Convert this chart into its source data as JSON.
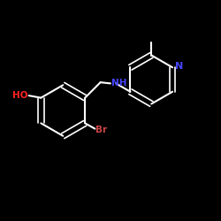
{
  "background_color": "#000000",
  "bond_color": "#ffffff",
  "N_color": "#4444ff",
  "O_color": "#ff2222",
  "Br_color": "#cc4444",
  "atom_labels": {
    "N": "N",
    "NH": "NH",
    "HO": "HO",
    "Br": "Br"
  },
  "figsize": [
    2.5,
    2.5
  ],
  "dpi": 100
}
